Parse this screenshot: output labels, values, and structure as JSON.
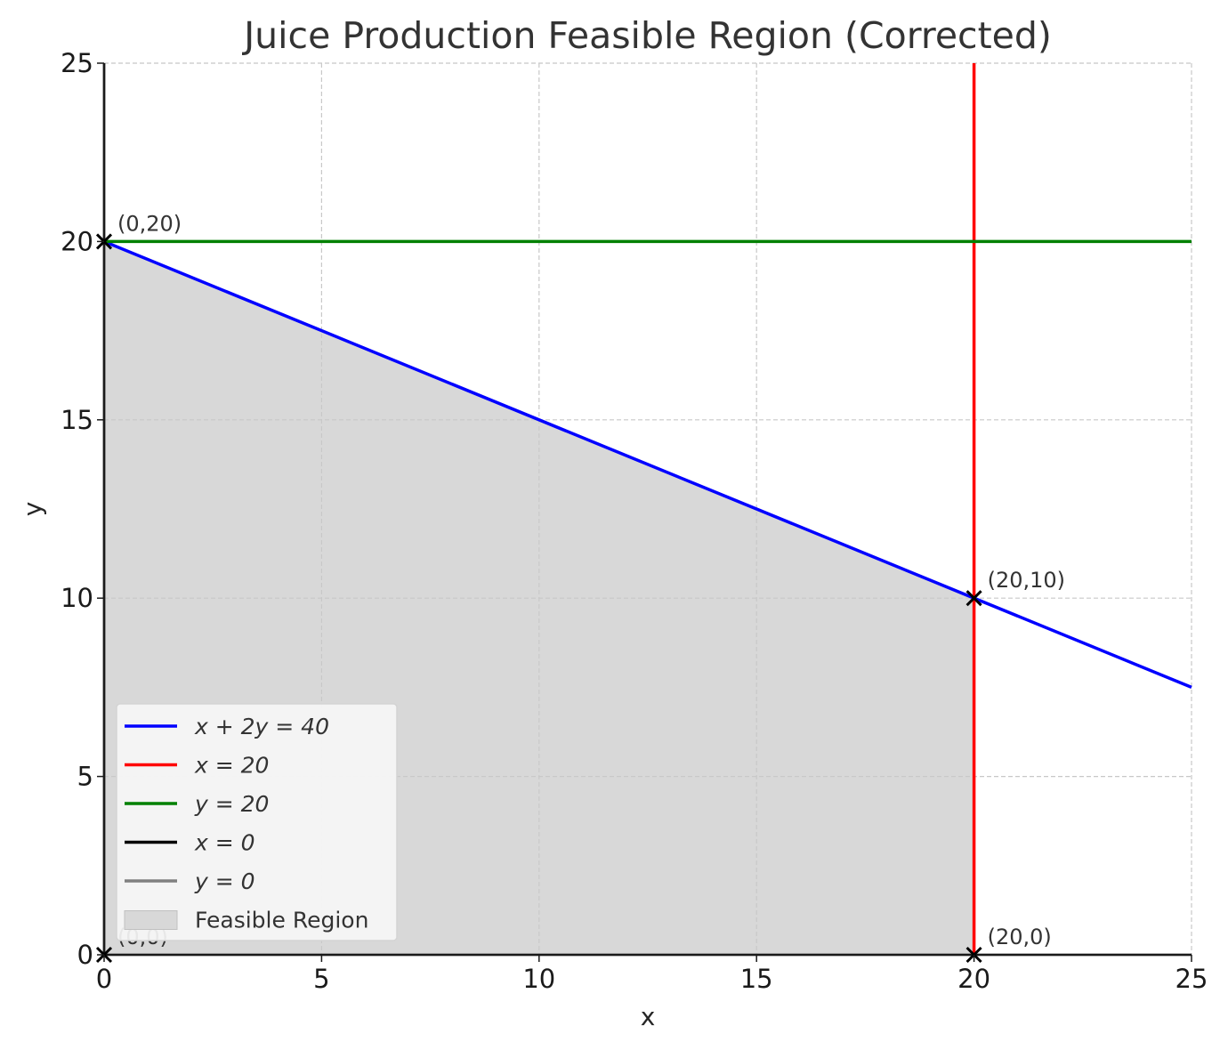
{
  "chart_data": {
    "type": "line",
    "title": "Juice Production Feasible Region (Corrected)",
    "xlabel": "x",
    "ylabel": "y",
    "xlim": [
      0,
      25
    ],
    "ylim": [
      0,
      25
    ],
    "xticks": [
      0,
      5,
      10,
      15,
      20,
      25
    ],
    "yticks": [
      0,
      5,
      10,
      15,
      20,
      25
    ],
    "grid": true,
    "legend_position": "bottom-left",
    "series": [
      {
        "name": "x + 2y = 40",
        "color": "#0000ff",
        "x": [
          0,
          25
        ],
        "y": [
          20,
          7.5
        ]
      },
      {
        "name": "x = 20",
        "color": "#ff0000",
        "x": [
          20,
          20
        ],
        "y": [
          0,
          25
        ]
      },
      {
        "name": "y = 20",
        "color": "#008000",
        "x": [
          0,
          25
        ],
        "y": [
          20,
          20
        ]
      },
      {
        "name": "x = 0",
        "color": "#000000",
        "x": [
          0,
          0
        ],
        "y": [
          0,
          25
        ]
      },
      {
        "name": "y = 0",
        "color": "#808080",
        "x": [
          0,
          25
        ],
        "y": [
          0,
          0
        ]
      }
    ],
    "feasible_region": {
      "name": "Feasible Region",
      "color": "#d8d8d8",
      "vertices": [
        [
          0,
          0
        ],
        [
          0,
          20
        ],
        [
          20,
          10
        ],
        [
          20,
          0
        ]
      ]
    },
    "corner_points": [
      {
        "x": 0,
        "y": 0,
        "label": "(0,0)"
      },
      {
        "x": 0,
        "y": 20,
        "label": "(0,20)"
      },
      {
        "x": 20,
        "y": 10,
        "label": "(20,10)"
      },
      {
        "x": 20,
        "y": 0,
        "label": "(20,0)"
      }
    ]
  }
}
